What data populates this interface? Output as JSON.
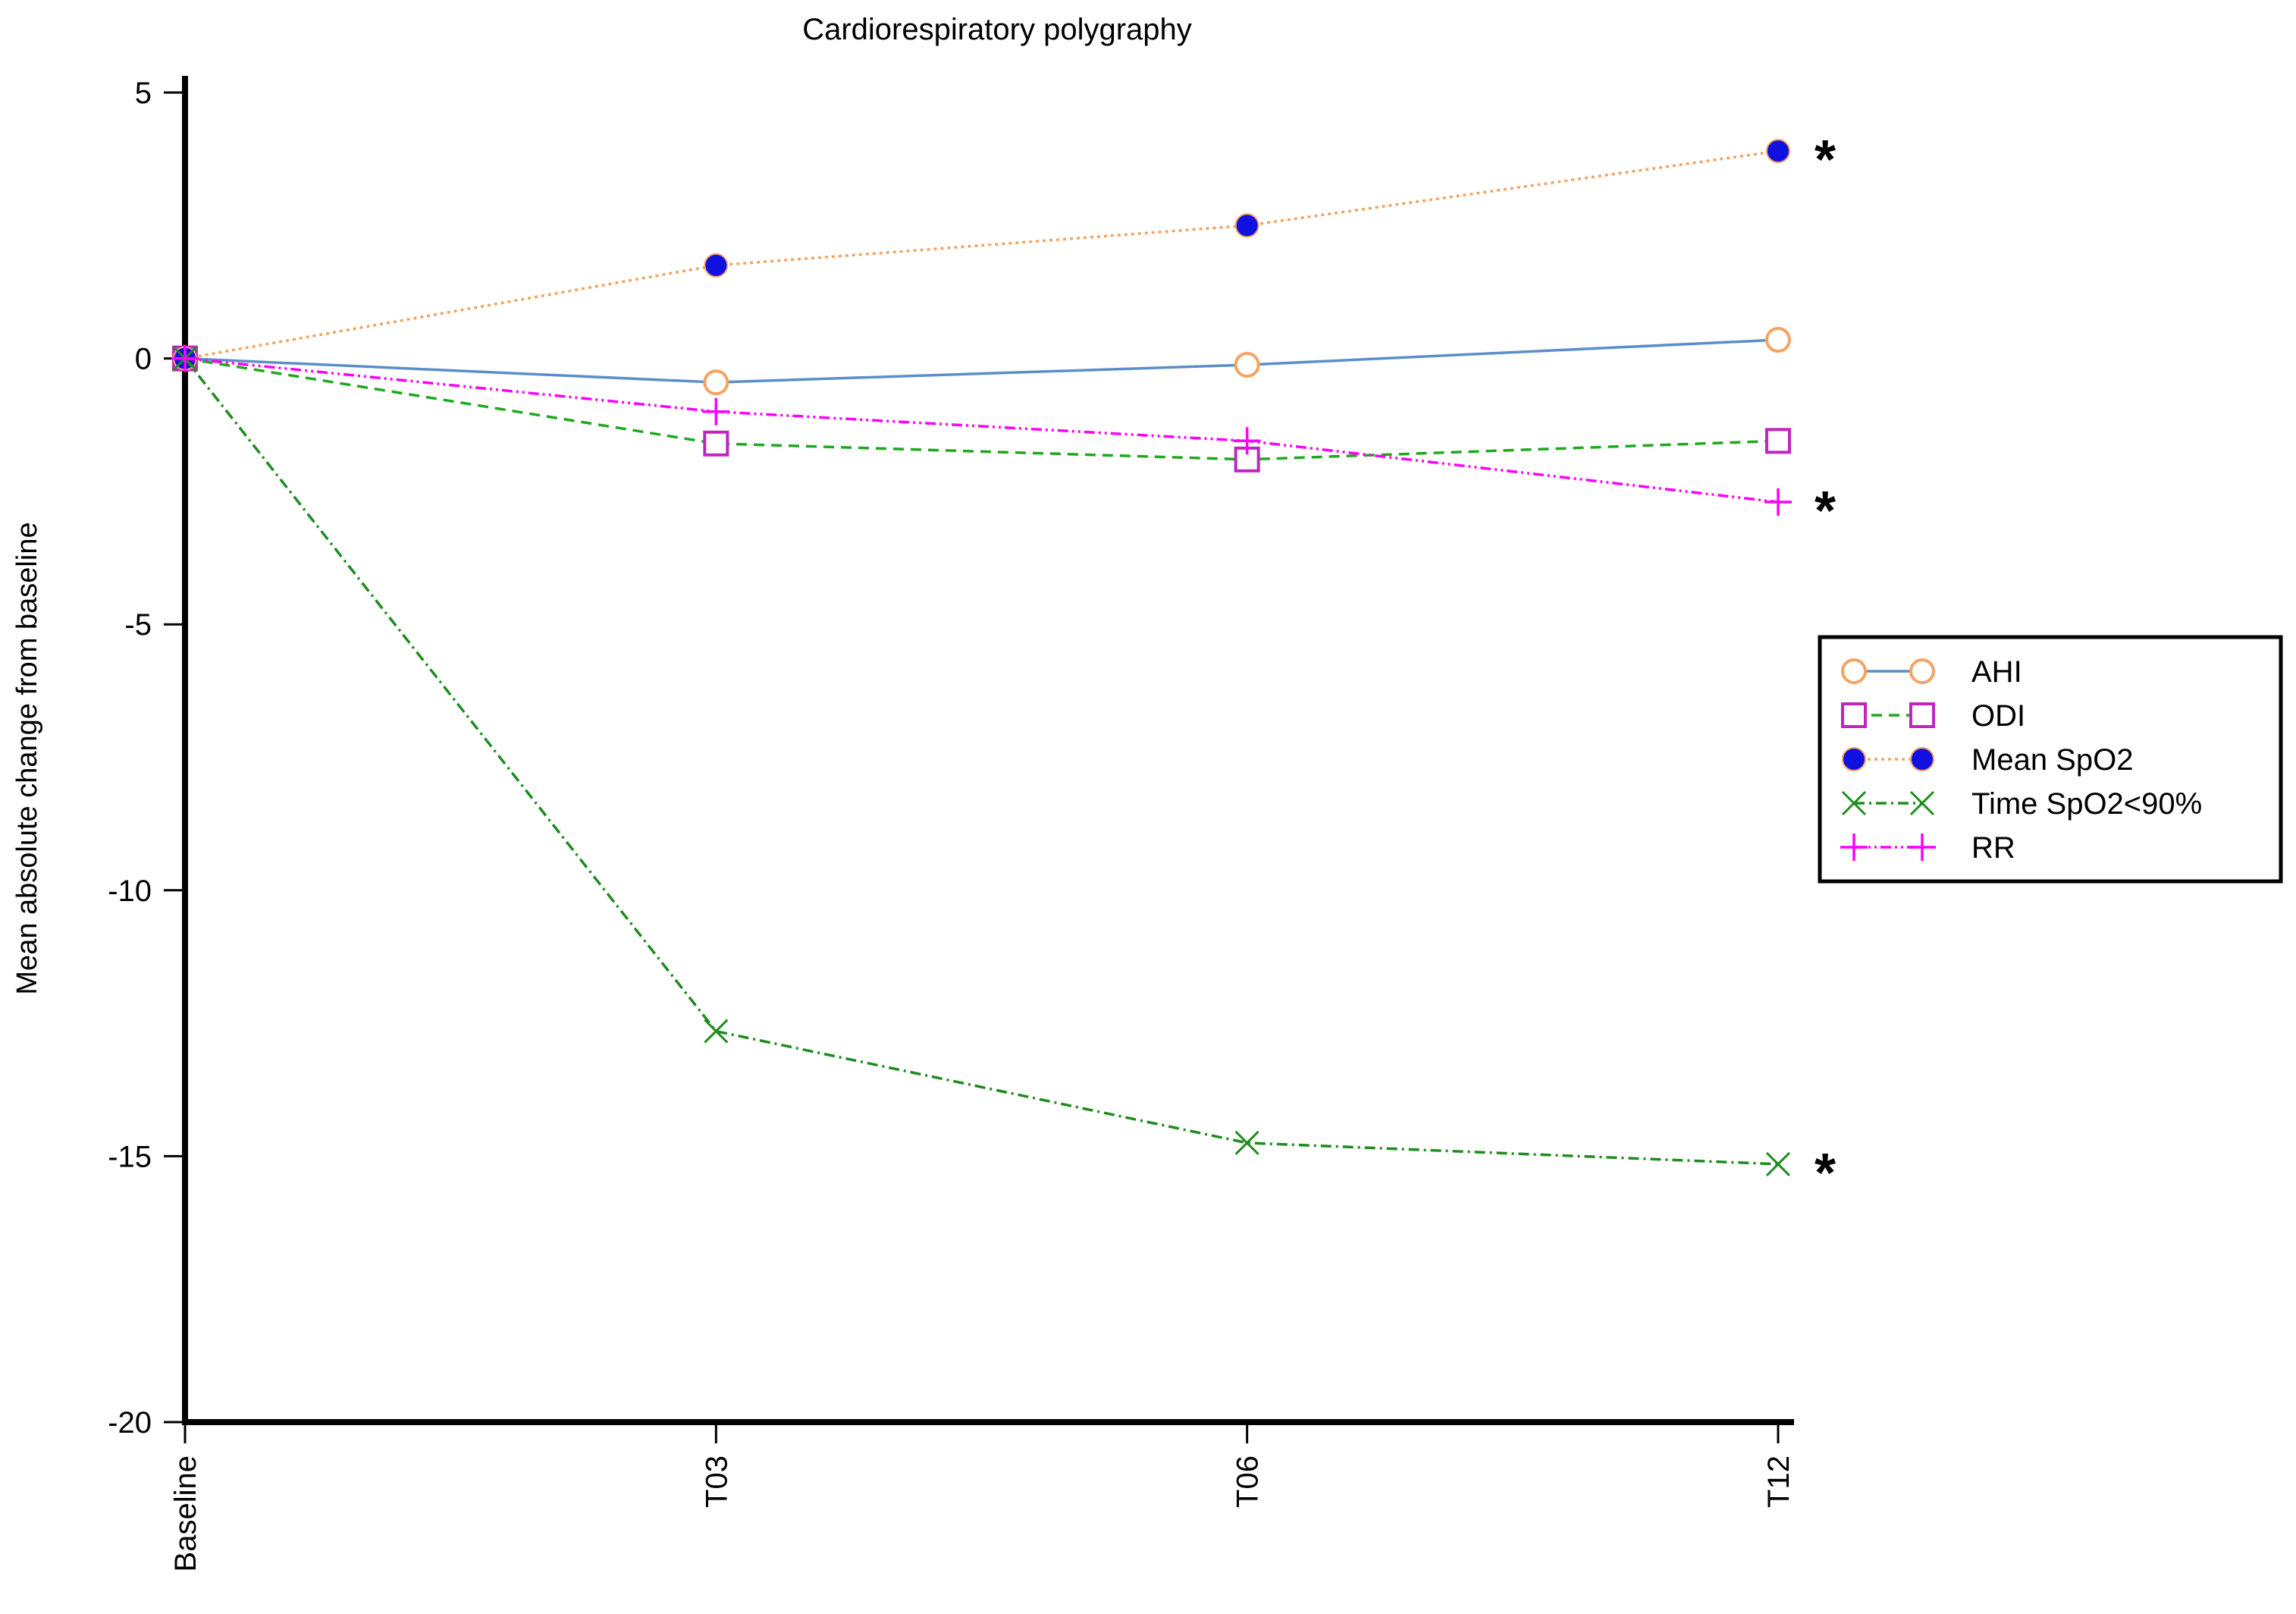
{
  "chart_data": {
    "type": "line",
    "title": "Cardiorespiratory polygraphy",
    "xlabel": "",
    "ylabel": "Mean absolute change from baseline",
    "categories": [
      "Baseline",
      "T03",
      "T06",
      "T12"
    ],
    "ylim": [
      -20,
      5
    ],
    "yticks": [
      5,
      0,
      -5,
      -10,
      -15,
      -20
    ],
    "ytick_labels": [
      "5",
      "0",
      "-5",
      "-10",
      "-15",
      "-20"
    ],
    "grid": false,
    "legend_position": "right",
    "series": [
      {
        "name": "AHI",
        "values": [
          0,
          -0.45,
          -0.12,
          0.35
        ],
        "marker": "open-circle",
        "marker_color": "#f4a460",
        "line_color": "#5b8ec9",
        "dash": "solid",
        "significant": false
      },
      {
        "name": "ODI",
        "values": [
          0,
          -1.6,
          -1.9,
          -1.55
        ],
        "marker": "open-square",
        "marker_color": "#c025c0",
        "line_color": "#1ea81e",
        "dash": "dashed",
        "significant": false
      },
      {
        "name": "Mean SpO2",
        "values": [
          0,
          1.75,
          2.5,
          3.9
        ],
        "marker": "filled-circle",
        "marker_color": "#1010e0",
        "line_color": "#f4a460",
        "dash": "dotted",
        "significant": true
      },
      {
        "name": "Time SpO2<90%",
        "values": [
          0,
          -12.65,
          -14.75,
          -15.15
        ],
        "marker": "x",
        "marker_color": "#1e8c1e",
        "line_color": "#1e8c1e",
        "dash": "dashdot",
        "significant": true
      },
      {
        "name": "RR",
        "values": [
          0,
          -1.0,
          -1.55,
          -2.7
        ],
        "marker": "plus",
        "marker_color": "#ff00ff",
        "line_color": "#ff00ff",
        "dash": "dashdotdot",
        "significant": true
      }
    ],
    "annotations": [
      "*",
      "*",
      "*"
    ]
  }
}
